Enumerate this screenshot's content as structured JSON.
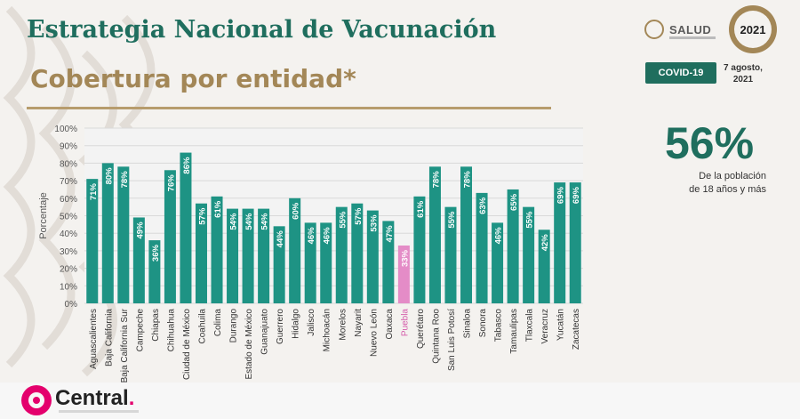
{
  "header": {
    "title": "Estrategia Nacional de Vacunación",
    "subtitle": "Cobertura por entidad*"
  },
  "branding": {
    "salud_label": "SALUD",
    "logo_year": "2021",
    "footer_brand": "Central",
    "footer_brand_dot": "."
  },
  "badge": {
    "label": "COVID-19"
  },
  "date": {
    "line1": "7 agosto,",
    "line2": "2021"
  },
  "stat": {
    "value": "56%",
    "caption_line1": "De la población",
    "caption_line2": "de 18 años y más"
  },
  "colors": {
    "bar": "#1e9384",
    "highlight": "#e48cc7",
    "title_green": "#1f6e5e",
    "title_gold": "#a38757",
    "brand_pink": "#e4006d"
  },
  "chart_data": {
    "type": "bar",
    "ylabel": "Porcentaje",
    "ylim": [
      0,
      100
    ],
    "yticks": [
      "0%",
      "10%",
      "20%",
      "30%",
      "40%",
      "50%",
      "60%",
      "70%",
      "80%",
      "90%",
      "100%"
    ],
    "grid": true,
    "categories": [
      "Aguascalientes",
      "Baja California",
      "Baja California Sur",
      "Campeche",
      "Chiapas",
      "Chihuahua",
      "Ciudad de México",
      "Coahuila",
      "Colima",
      "Durango",
      "Estado de México",
      "Guanajuato",
      "Guerrero",
      "Hidalgo",
      "Jalisco",
      "Michoacán",
      "Morelos",
      "Nayarit",
      "Nuevo León",
      "Oaxaca",
      "Puebla",
      "Querétaro",
      "Quintana Roo",
      "San Luis Potosí",
      "Sinaloa",
      "Sonora",
      "Tabasco",
      "Tamaulipas",
      "Tlaxcala",
      "Veracruz",
      "Yucatán",
      "Zacatecas"
    ],
    "values": [
      71,
      80,
      78,
      49,
      36,
      76,
      86,
      57,
      61,
      54,
      54,
      54,
      44,
      60,
      46,
      46,
      55,
      57,
      53,
      47,
      33,
      61,
      78,
      55,
      78,
      63,
      46,
      65,
      55,
      42,
      69,
      69
    ],
    "data_labels": [
      "71%",
      "80%",
      "78%",
      "49%",
      "36%",
      "76%",
      "86%",
      "57%",
      "61%",
      "54%",
      "54%",
      "54%",
      "44%",
      "60%",
      "46%",
      "46%",
      "55%",
      "57%",
      "53%",
      "47%",
      "33%",
      "61%",
      "78%",
      "55%",
      "78%",
      "63%",
      "46%",
      "65%",
      "55%",
      "42%",
      "69%",
      "69%"
    ],
    "highlight_category": "Puebla"
  }
}
